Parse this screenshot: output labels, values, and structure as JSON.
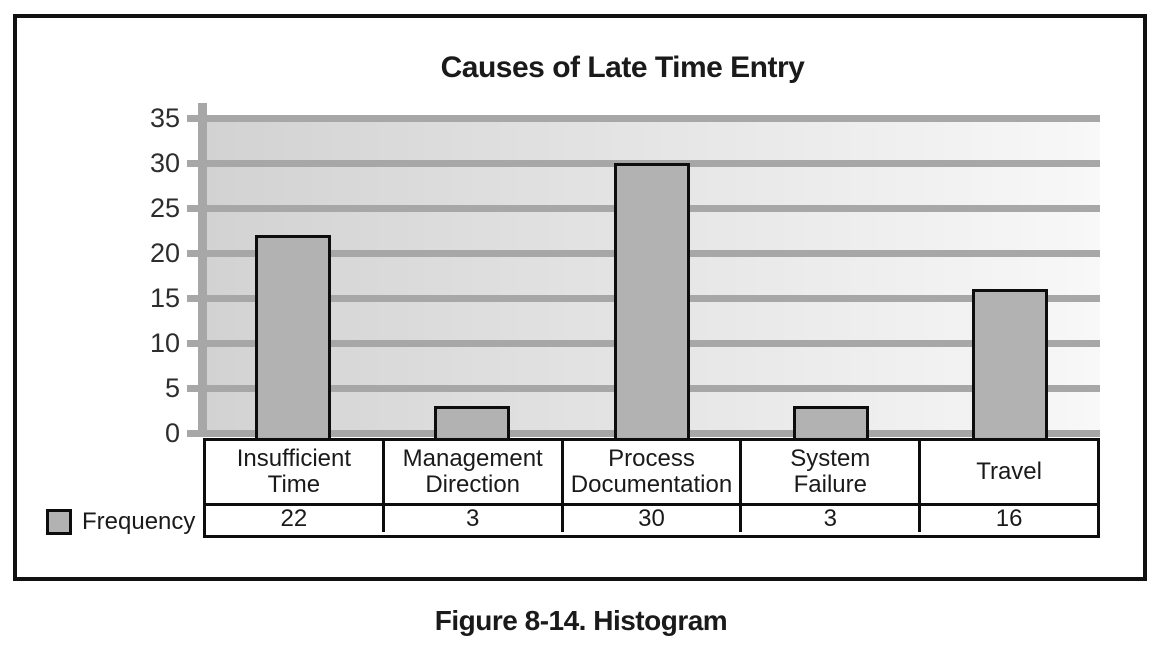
{
  "chart_data": {
    "type": "bar",
    "title": "Causes of Late Time Entry",
    "categories": [
      "Insufficient Time",
      "Management Direction",
      "Process Documentation",
      "System Failure",
      "Travel"
    ],
    "category_label_lines": [
      [
        "Insufficient",
        "Time"
      ],
      [
        "Management",
        "Direction"
      ],
      [
        "Process",
        "Documentation"
      ],
      [
        "System",
        "Failure"
      ],
      [
        "Travel"
      ]
    ],
    "series": [
      {
        "name": "Frequency",
        "values": [
          22,
          3,
          30,
          3,
          16
        ]
      }
    ],
    "xlabel": "",
    "ylabel": "",
    "ylim": [
      0,
      35
    ],
    "yticks": [
      35,
      30,
      25,
      20,
      15,
      10,
      5,
      0
    ],
    "grid": "horizontal-major",
    "legend_position": "bottom-left",
    "data_table_shown": true
  },
  "legend": {
    "label": "Frequency"
  },
  "figure": {
    "caption": "Figure 8-14. Histogram"
  },
  "colors": {
    "bar_fill": "#b2b2b2",
    "bar_border": "#0d0d0d",
    "gridline": "#a7a7a7",
    "plot_bg_left": "#d2d2d2",
    "plot_bg_right": "#f8f8f8",
    "frame_border": "#111111",
    "text": "#1a1a1a"
  }
}
